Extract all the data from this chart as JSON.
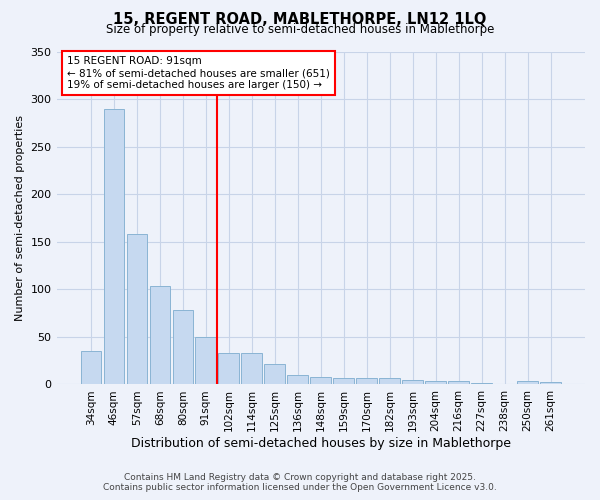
{
  "title1": "15, REGENT ROAD, MABLETHORPE, LN12 1LQ",
  "title2": "Size of property relative to semi-detached houses in Mablethorpe",
  "xlabel": "Distribution of semi-detached houses by size in Mablethorpe",
  "ylabel": "Number of semi-detached properties",
  "categories": [
    "34sqm",
    "46sqm",
    "57sqm",
    "68sqm",
    "80sqm",
    "91sqm",
    "102sqm",
    "114sqm",
    "125sqm",
    "136sqm",
    "148sqm",
    "159sqm",
    "170sqm",
    "182sqm",
    "193sqm",
    "204sqm",
    "216sqm",
    "227sqm",
    "238sqm",
    "250sqm",
    "261sqm"
  ],
  "values": [
    35,
    290,
    158,
    103,
    78,
    50,
    33,
    33,
    21,
    10,
    8,
    7,
    7,
    7,
    5,
    4,
    4,
    2,
    1,
    4,
    3
  ],
  "bar_color": "#c6d9f0",
  "bar_edge_color": "#8ab4d4",
  "vline_index": 5,
  "vline_color": "red",
  "annotation_title": "15 REGENT ROAD: 91sqm",
  "annotation_line1": "← 81% of semi-detached houses are smaller (651)",
  "annotation_line2": "19% of semi-detached houses are larger (150) →",
  "annotation_box_color": "white",
  "annotation_box_edge": "red",
  "ylim": [
    0,
    350
  ],
  "footer1": "Contains HM Land Registry data © Crown copyright and database right 2025.",
  "footer2": "Contains public sector information licensed under the Open Government Licence v3.0.",
  "background_color": "#eef2fa",
  "grid_color": "#c8d4e8"
}
